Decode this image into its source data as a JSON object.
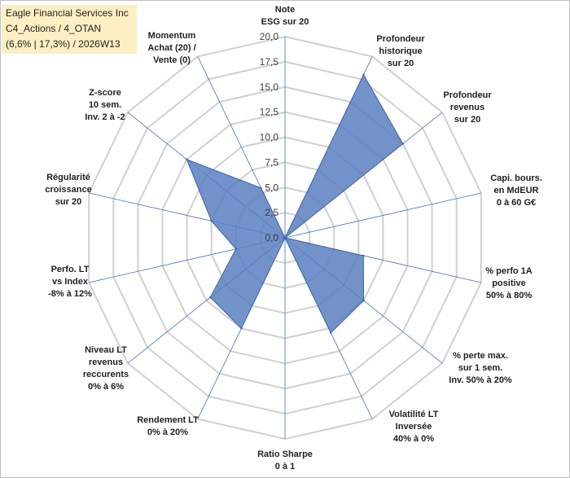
{
  "title": {
    "lines": [
      "Eagle Financial Services Inc",
      "C4_Actions / 4_OTAN",
      "(6,6% | 17,3%) / 2026W13"
    ]
  },
  "chart_data": {
    "type": "radar",
    "ylim": [
      0,
      20
    ],
    "ticks": [
      "0,0",
      "2,5",
      "5,0",
      "7,5",
      "10,0",
      "12,5",
      "15,0",
      "17,5",
      "20,0"
    ],
    "tick_values": [
      0,
      2.5,
      5,
      7.5,
      10,
      12.5,
      15,
      17.5,
      20
    ],
    "categories": [
      "Note ESG sur 20",
      "Profondeur historique sur 20",
      "Profondeur revenus sur 20",
      "Capi. bours. en MdEUR 0 à 60 G€",
      "% perfo 1A positive 50% à 80%",
      "% perte max. sur 1 sem. Inv. 50% à 20%",
      "Volatilité LT Inversée 40% à 0%",
      "Ratio Sharpe 0 à 1",
      "Rendement LT 0% à 20%",
      "Niveau LT revenus reccurents 0% à 6%",
      "Perfo. LT vs Index -8% à 12%",
      "Régularité croissance sur 20",
      "Z-score 10 sem. Inv. 2 à -2",
      "Momentum Achat (20) / Vente (0)"
    ],
    "category_lines": [
      [
        "Note",
        "ESG sur 20"
      ],
      [
        "Profondeur",
        "historique",
        "sur 20"
      ],
      [
        "Profondeur",
        "revenus",
        "sur 20"
      ],
      [
        "Capi. bours.",
        "en MdEUR",
        "0 à 60 G€"
      ],
      [
        "% perfo 1A",
        "positive",
        "50% à 80%"
      ],
      [
        "% perte max.",
        "sur 1 sem.",
        "Inv. 50% à 20%"
      ],
      [
        "Volatilité LT",
        "Inversée",
        "40% à 0%"
      ],
      [
        "Ratio Sharpe",
        "0 à 1"
      ],
      [
        "Rendement LT",
        "0% à 20%"
      ],
      [
        "Niveau LT",
        "revenus",
        "reccurents",
        "0% à 6%"
      ],
      [
        "Perfo. LT",
        "vs Index",
        "-8% à 12%"
      ],
      [
        "Régularité",
        "croissance",
        "sur 20"
      ],
      [
        "Z-score",
        "10 sem.",
        "Inv. 2 à -2"
      ],
      [
        "Momentum",
        "Achat (20) /",
        "Vente (0)"
      ]
    ],
    "series": [
      {
        "name": "Eagle Financial Services Inc",
        "values": [
          0,
          18,
          15,
          0,
          8,
          10,
          10.5,
          0,
          10,
          9.5,
          5,
          7.5,
          12.5,
          5.5
        ]
      }
    ],
    "colors": {
      "fill": "#5b7fbf",
      "stroke": "#3d63a6",
      "spoke": "#4472c4",
      "grid": "#d0d0d0"
    }
  }
}
